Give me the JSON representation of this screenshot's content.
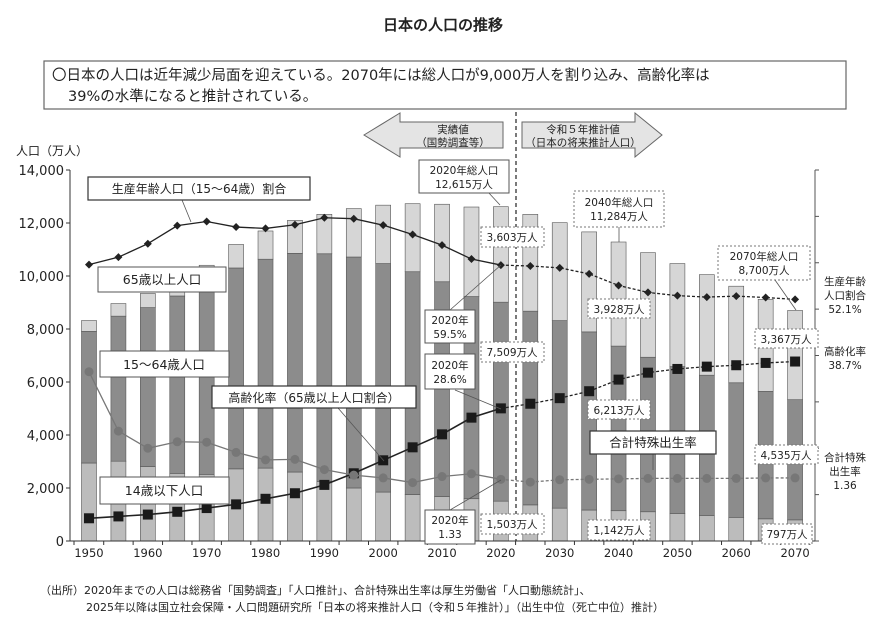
{
  "chart_data": {
    "type": "bar+line",
    "title": "日本の人口の推移",
    "summary_lines": [
      "〇日本の人口は近年減少局面を迎えている。2070年には総人口が9,000万人を割り込み、高齢化率は",
      "39%の水準になると推計されている。"
    ],
    "ylabel": "人口（万人）",
    "ylim": [
      0,
      14000
    ],
    "yticks": [
      "0",
      "2,000",
      "4,000",
      "6,000",
      "8,000",
      "10,000",
      "12,000",
      "14,000"
    ],
    "y2lim_percent": [
      0,
      80
    ],
    "y2lim_tfr": [
      0,
      8
    ],
    "xtick_labels": [
      "1950",
      "1960",
      "1970",
      "1980",
      "1990",
      "2000",
      "2010",
      "2020",
      "2030",
      "2040",
      "2050",
      "2060",
      "2070"
    ],
    "x": [
      1950,
      1955,
      1960,
      1965,
      1970,
      1975,
      1980,
      1985,
      1990,
      1995,
      2000,
      2005,
      2010,
      2015,
      2020,
      2025,
      2030,
      2035,
      2040,
      2045,
      2050,
      2055,
      2060,
      2065,
      2070
    ],
    "projection_start": 2025,
    "bar_series": [
      {
        "name": "14歳以下人口",
        "color": "#bcbcbc",
        "values": [
          2943,
          3012,
          2807,
          2553,
          2515,
          2722,
          2751,
          2603,
          2249,
          2001,
          1847,
          1752,
          1680,
          1595,
          1503,
          1363,
          1240,
          1169,
          1142,
          1103,
          1041,
          966,
          893,
          836,
          797
        ]
      },
      {
        "name": "15～64歳人口",
        "color": "#8c8c8c",
        "values": [
          4966,
          5473,
          6000,
          6693,
          7157,
          7581,
          7883,
          8251,
          8590,
          8716,
          8622,
          8409,
          8103,
          7629,
          7509,
          7310,
          7076,
          6722,
          6213,
          5832,
          5540,
          5291,
          5078,
          4809,
          4535
        ]
      },
      {
        "name": "65歳以上人口",
        "color": "#d6d6d6",
        "values": [
          411,
          475,
          535,
          618,
          733,
          887,
          1065,
          1247,
          1489,
          1826,
          2204,
          2567,
          2925,
          3379,
          3603,
          3653,
          3696,
          3773,
          3928,
          3945,
          3888,
          3794,
          3644,
          3475,
          3367
        ]
      }
    ],
    "line_series": [
      {
        "name": "生産年齢人口（15～64歳）割合",
        "unit": "%",
        "marker": "diamond",
        "values": [
          59.6,
          61.2,
          64.1,
          68.0,
          68.9,
          67.7,
          67.4,
          68.2,
          69.7,
          69.5,
          68.1,
          66.1,
          63.8,
          60.8,
          59.5,
          59.3,
          58.9,
          57.6,
          55.1,
          53.6,
          52.9,
          52.6,
          52.8,
          52.5,
          52.1
        ]
      },
      {
        "name": "高齢化率（65歳以上人口割合）",
        "unit": "%",
        "marker": "square",
        "values": [
          4.9,
          5.3,
          5.7,
          6.3,
          7.1,
          7.9,
          9.1,
          10.3,
          12.1,
          14.6,
          17.4,
          20.2,
          23.0,
          26.6,
          28.6,
          29.6,
          30.8,
          32.3,
          34.8,
          36.3,
          37.1,
          37.6,
          37.9,
          38.4,
          38.7
        ]
      },
      {
        "name": "合計特殊出生率",
        "unit": "",
        "marker": "circle",
        "values": [
          3.65,
          2.37,
          2.0,
          2.14,
          2.13,
          1.91,
          1.75,
          1.76,
          1.54,
          1.42,
          1.36,
          1.26,
          1.39,
          1.45,
          1.33,
          1.27,
          1.32,
          1.33,
          1.34,
          1.35,
          1.35,
          1.35,
          1.35,
          1.36,
          1.36
        ]
      }
    ],
    "legend_labels": {
      "working_ratio": "生産年齢人口（15～64歳）割合",
      "over65": "65歳以上人口",
      "age15_64": "15～64歳人口",
      "aging_rate": "高齢化率（65歳以上人口割合）",
      "under14": "14歳以下人口",
      "tfr": "合計特殊出生率"
    },
    "period_arrows": {
      "actual": [
        "実績値",
        "（国勢調査等）"
      ],
      "projection": [
        "令和５年推計値",
        "（日本の将来推計人口）"
      ]
    },
    "annotations": {
      "total2020": [
        "2020年総人口",
        "12,615万人"
      ],
      "over65_2020": "3,603万人",
      "ratio2020": [
        "2020年",
        "59.5%"
      ],
      "mid2020": "7,509万人",
      "aging2020": [
        "2020年",
        "28.6%"
      ],
      "tfr2020": [
        "2020年",
        "1.33"
      ],
      "under14_2020": "1,503万人",
      "total2040": [
        "2040年総人口",
        "11,284万人"
      ],
      "over65_2040": "3,928万人",
      "mid2040": "6,213万人",
      "under14_2040": "1,142万人",
      "total2070": [
        "2070年総人口",
        "8,700万人"
      ],
      "over65_2070": "3,367万人",
      "mid2070": "4,535万人",
      "under14_2070": "797万人",
      "right_ratio": [
        "生産年齢",
        "人口割合",
        "52.1%"
      ],
      "right_aging": [
        "高齢化率",
        "38.7%"
      ],
      "right_tfr": [
        "合計特殊",
        "出生率",
        "1.36"
      ]
    },
    "source": [
      "（出所）2020年までの人口は総務省「国勢調査」「人口推計」、合計特殊出生率は厚生労働省「人口動態統計」、",
      "2025年以降は国立社会保障・人口問題研究所「日本の将来推計人口（令和５年推計）」（出生中位（死亡中位）推計）"
    ]
  }
}
